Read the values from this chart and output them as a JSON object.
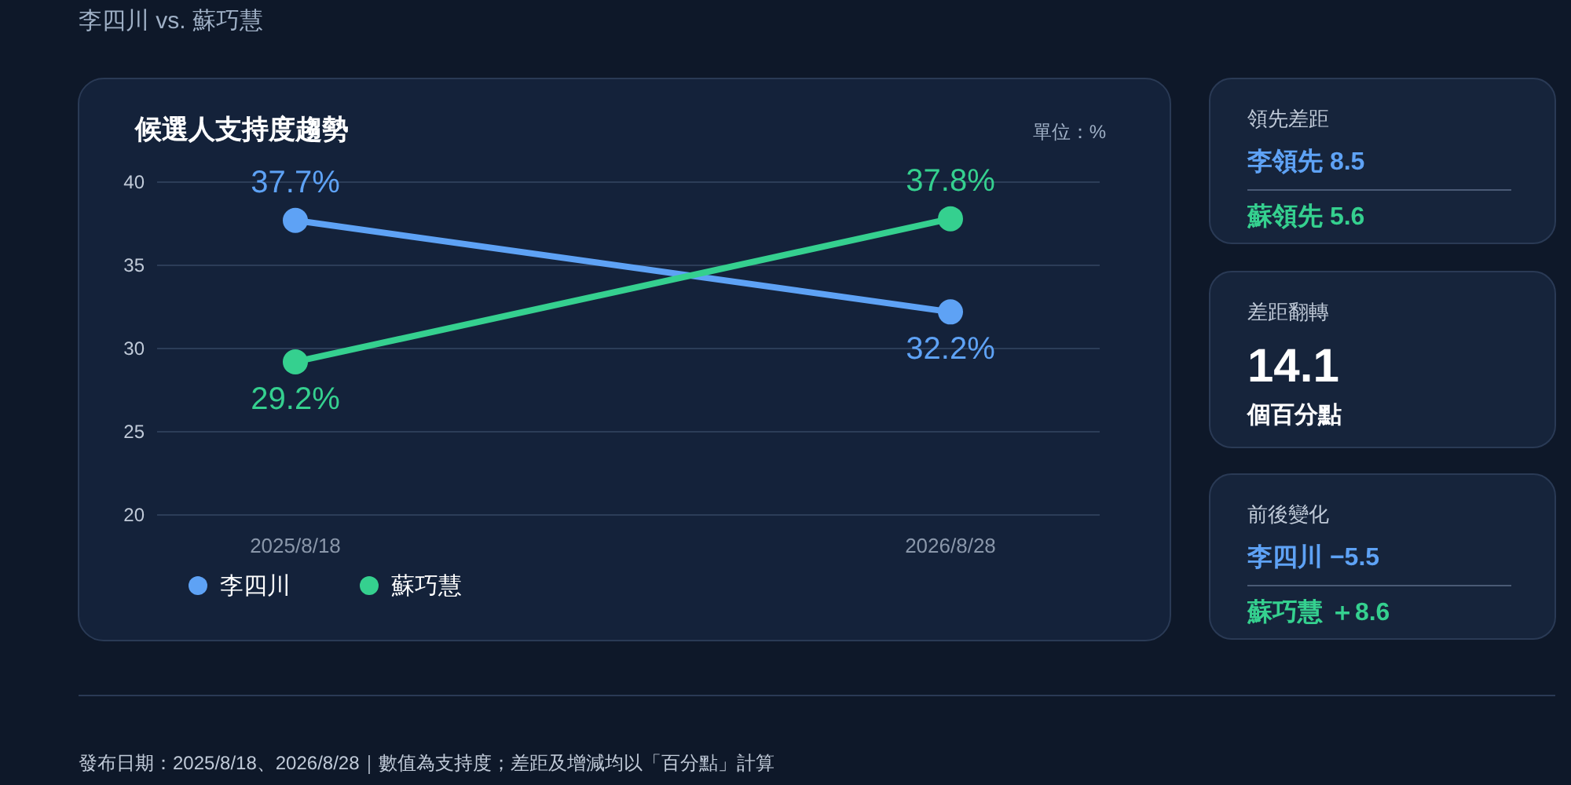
{
  "chart_data": [
    {
      "type": "line",
      "title": "候選人支持度趨勢",
      "annotations": [
        "李四川 vs. 蘇巧慧",
        "單位：%",
        "發布日期：2025/8/18、2026/8/28｜數值為支持度；差距及增減均以「百分點」計算"
      ],
      "categories": [
        "2025/8/18",
        "2026/8/28"
      ],
      "series": [
        {
          "name": "李四川",
          "color": "#5ea2f5",
          "values": [
            37.7,
            32.2
          ],
          "value_labels": [
            "37.7%",
            "32.2%"
          ]
        },
        {
          "name": "蘇巧慧",
          "color": "#35d08f",
          "values": [
            29.2,
            37.8
          ],
          "value_labels": [
            "29.2%",
            "37.8%"
          ]
        }
      ],
      "ylim": [
        20,
        40
      ],
      "yticks": [
        20,
        25,
        30,
        35,
        40
      ],
      "grid": "y",
      "legend": "bottom left",
      "marker": "circle",
      "line_style": "solid"
    },
    {
      "type": "other",
      "title": "領先差距",
      "annotations": [
        "李領先 8.5",
        "蘇領先 5.6"
      ]
    },
    {
      "type": "other",
      "title": "差距翻轉",
      "annotations": [
        "14.1",
        "個百分點"
      ]
    },
    {
      "type": "other",
      "title": "前後變化",
      "annotations": [
        "李四川 −5.5",
        "蘇巧慧 ＋8.6"
      ]
    }
  ]
}
